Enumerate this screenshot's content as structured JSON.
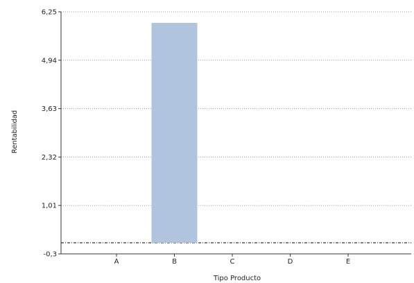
{
  "chart_data": {
    "type": "bar",
    "title": "",
    "xlabel": "Tipo Producto",
    "ylabel": "Rentabilidad",
    "categories": [
      "A",
      "B",
      "C",
      "D",
      "E"
    ],
    "values": [
      0,
      5.95,
      0,
      0,
      0
    ],
    "ylim": [
      -0.3,
      6.25
    ],
    "yticks": [
      "-0,3",
      "1,01",
      "2,32",
      "3,63",
      "4,94",
      "6,25"
    ],
    "grid": true,
    "legend": "none",
    "colors": {
      "bar": "#b0c4de",
      "grid": "#9a9a9a",
      "zero_line": "#333333",
      "axis": "#333333"
    }
  }
}
